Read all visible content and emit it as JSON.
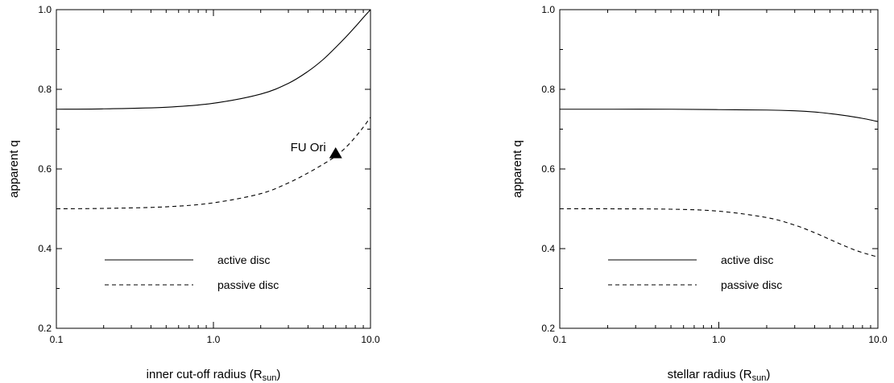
{
  "chart_data": [
    {
      "type": "line",
      "xscale": "log",
      "xlim": [
        0.1,
        10.0
      ],
      "ylim": [
        0.2,
        1.0
      ],
      "xticks": [
        "0.1",
        "1.0",
        "10.0"
      ],
      "yticks": [
        "0.2",
        "0.4",
        "0.6",
        "0.8",
        "1.0"
      ],
      "xlabel": {
        "main": "inner cut-off radius (R",
        "sub": "sun",
        "close": ")"
      },
      "ylabel": "apparent q",
      "legend_position": "bottom-left",
      "series": [
        {
          "name": "active disc",
          "style": "solid",
          "x": [
            0.1,
            0.2,
            0.5,
            1.0,
            2.0,
            3.0,
            4.0,
            5.0,
            6.0,
            7.0,
            8.0,
            9.0,
            10.0
          ],
          "y": [
            0.75,
            0.751,
            0.755,
            0.765,
            0.788,
            0.815,
            0.845,
            0.875,
            0.905,
            0.932,
            0.957,
            0.98,
            1.0
          ]
        },
        {
          "name": "passive disc",
          "style": "dashed",
          "x": [
            0.1,
            0.2,
            0.5,
            1.0,
            2.0,
            3.0,
            4.0,
            5.0,
            6.0,
            7.0,
            8.0,
            9.0,
            10.0
          ],
          "y": [
            0.5,
            0.501,
            0.505,
            0.515,
            0.538,
            0.565,
            0.59,
            0.612,
            0.632,
            0.655,
            0.68,
            0.705,
            0.73
          ]
        }
      ],
      "annotations": [
        {
          "label": "FU Ori",
          "marker": "triangle",
          "x": 6.0,
          "y": 0.64
        }
      ]
    },
    {
      "type": "line",
      "xscale": "log",
      "xlim": [
        0.1,
        10.0
      ],
      "ylim": [
        0.2,
        1.0
      ],
      "xticks": [
        "0.1",
        "1.0",
        "10.0"
      ],
      "yticks": [
        "0.2",
        "0.4",
        "0.6",
        "0.8",
        "1.0"
      ],
      "xlabel": {
        "main": "stellar radius (R",
        "sub": "sun",
        "close": ")"
      },
      "ylabel": "apparent q",
      "legend_position": "bottom-left",
      "series": [
        {
          "name": "active disc",
          "style": "solid",
          "x": [
            0.1,
            0.2,
            0.5,
            1.0,
            2.0,
            3.0,
            4.0,
            5.0,
            6.0,
            7.0,
            8.0,
            9.0,
            10.0
          ],
          "y": [
            0.75,
            0.75,
            0.75,
            0.749,
            0.748,
            0.746,
            0.743,
            0.739,
            0.735,
            0.731,
            0.727,
            0.723,
            0.719
          ]
        },
        {
          "name": "passive disc",
          "style": "dashed",
          "x": [
            0.1,
            0.2,
            0.5,
            1.0,
            2.0,
            3.0,
            4.0,
            5.0,
            6.0,
            7.0,
            8.0,
            9.0,
            10.0
          ],
          "y": [
            0.5,
            0.5,
            0.499,
            0.494,
            0.478,
            0.459,
            0.44,
            0.423,
            0.409,
            0.398,
            0.39,
            0.384,
            0.379
          ]
        }
      ],
      "annotations": []
    }
  ]
}
